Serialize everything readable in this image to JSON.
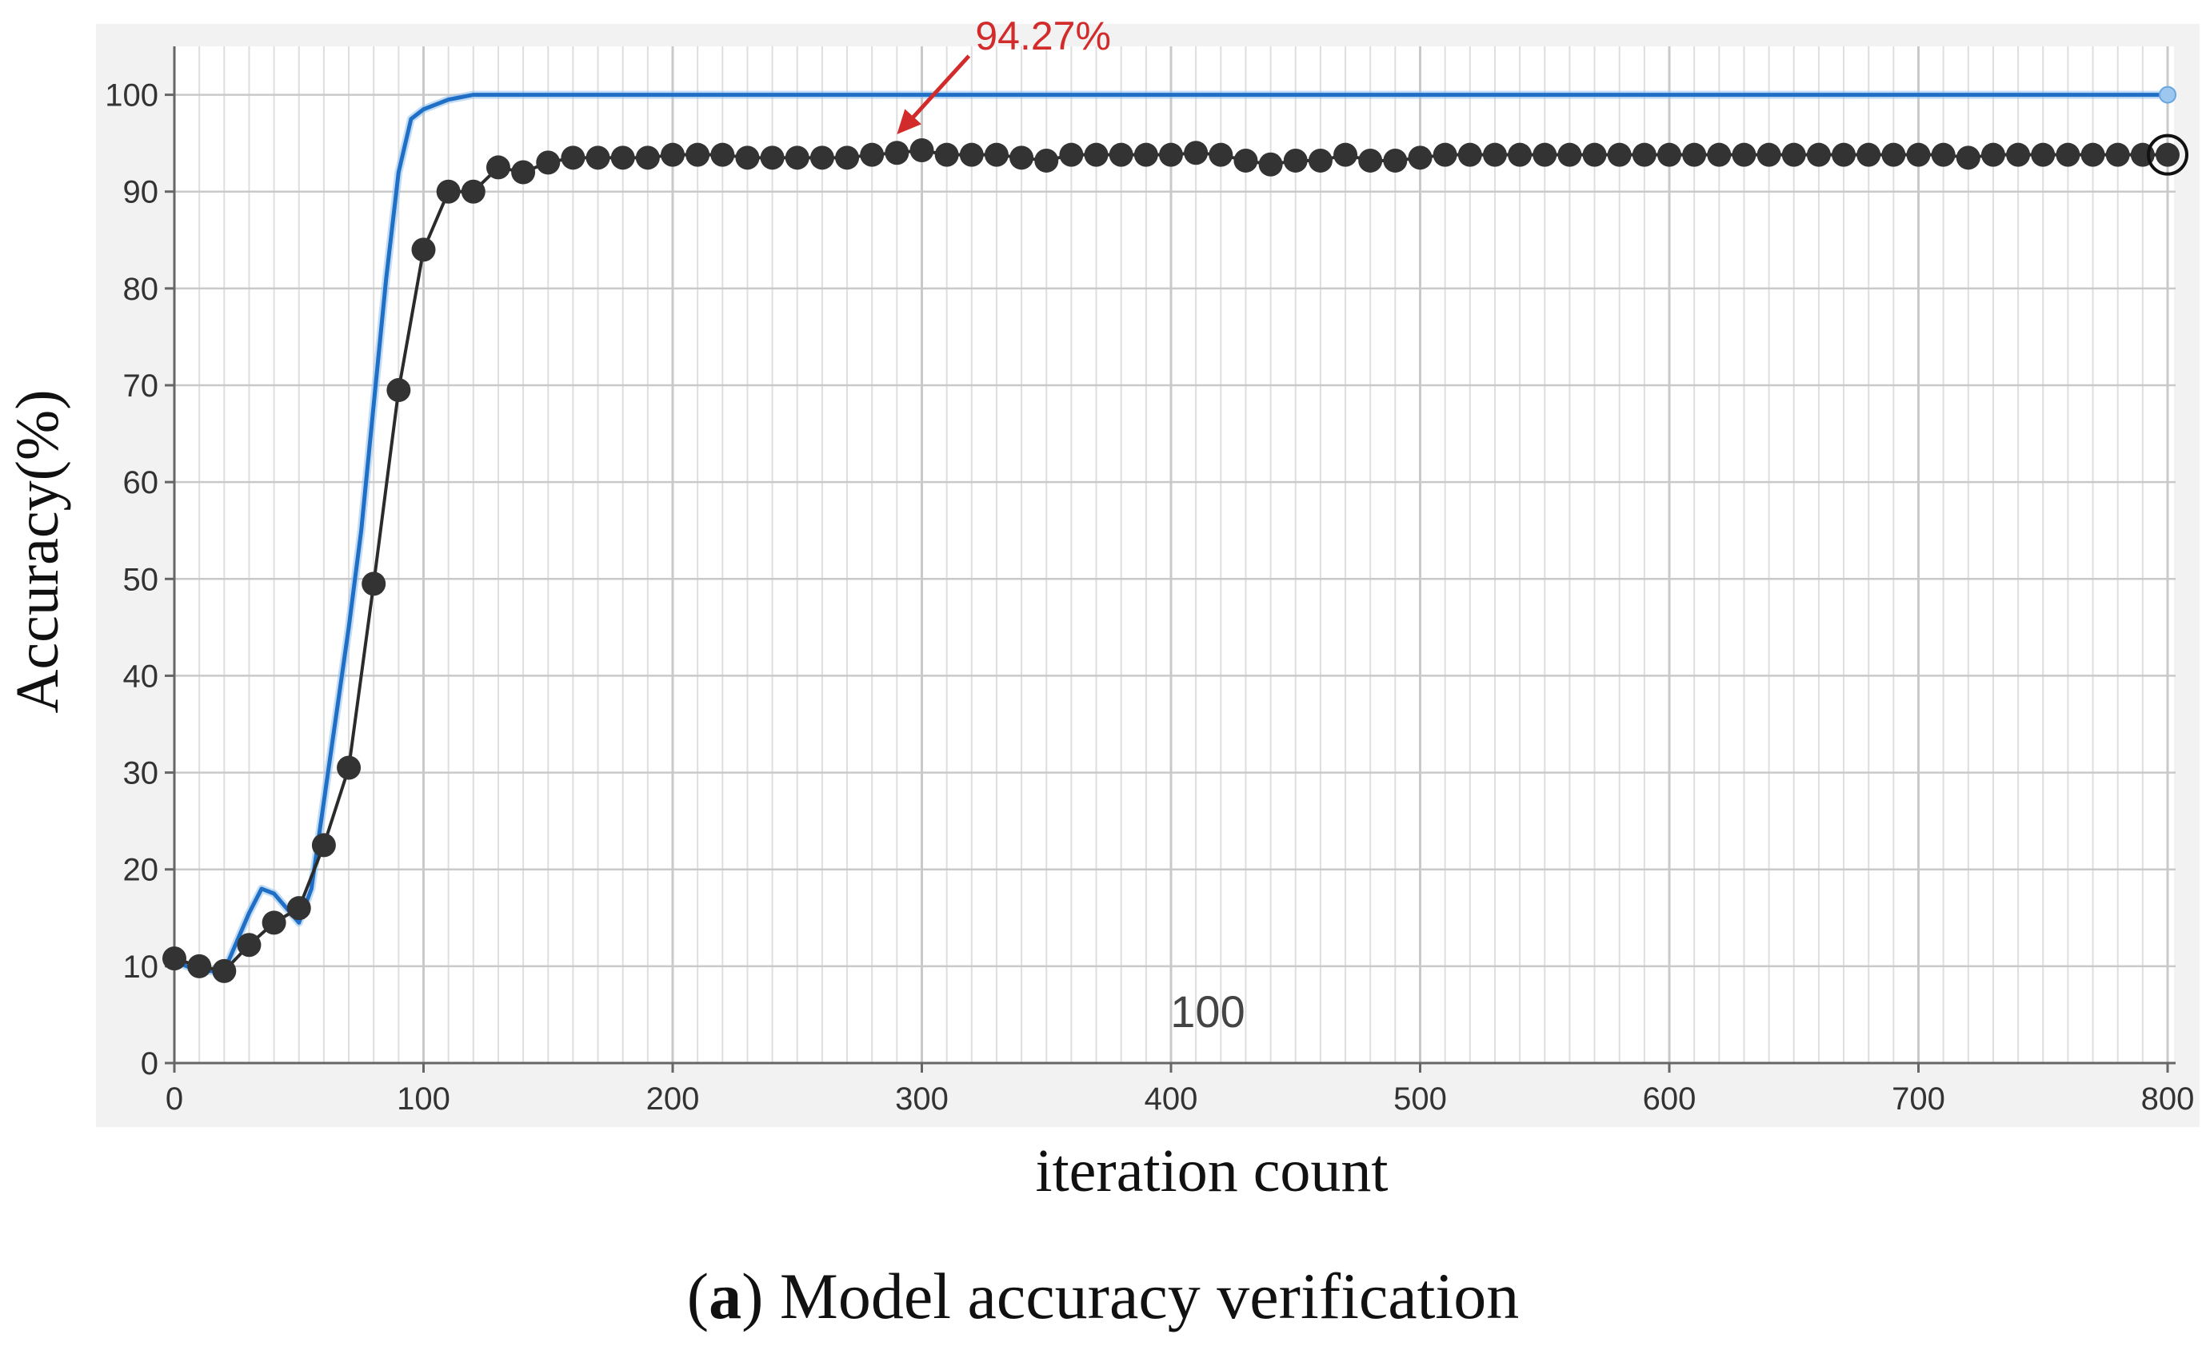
{
  "chart_data": {
    "type": "line",
    "xlabel": "iteration count",
    "ylabel": "Accuracy(%)",
    "xlim": [
      0,
      800
    ],
    "ylim": [
      0,
      105
    ],
    "x_ticks": [
      0,
      100,
      200,
      300,
      400,
      500,
      600,
      700,
      800
    ],
    "y_ticks": [
      0,
      10,
      20,
      30,
      40,
      50,
      60,
      70,
      80,
      90,
      100
    ],
    "grid": true,
    "inplot_label": "100",
    "annotation": {
      "text": "94.27%",
      "x": 290,
      "y": 94.27
    },
    "series": [
      {
        "color": "#1f6fc6",
        "style": "solid",
        "x": [
          0,
          10,
          20,
          30,
          35,
          40,
          45,
          50,
          55,
          60,
          65,
          70,
          75,
          80,
          85,
          90,
          95,
          100,
          110,
          120,
          130,
          800
        ],
        "y": [
          10.5,
          9.5,
          9.5,
          15.5,
          18,
          17.5,
          16,
          14.5,
          18,
          27,
          36,
          45,
          55,
          68,
          81,
          92,
          97.5,
          98.5,
          99.5,
          100,
          100,
          100
        ]
      },
      {
        "color": "#2b2b2b",
        "style": "markers",
        "x": [
          0,
          10,
          20,
          30,
          40,
          50,
          60,
          70,
          80,
          90,
          100,
          110,
          120,
          130,
          140,
          150,
          160,
          170,
          180,
          190,
          200,
          210,
          220,
          230,
          240,
          250,
          260,
          270,
          280,
          290,
          300,
          310,
          320,
          330,
          340,
          350,
          360,
          370,
          380,
          390,
          400,
          410,
          420,
          430,
          440,
          450,
          460,
          470,
          480,
          490,
          500,
          510,
          520,
          530,
          540,
          550,
          560,
          570,
          580,
          590,
          600,
          610,
          620,
          630,
          640,
          650,
          660,
          670,
          680,
          690,
          700,
          710,
          720,
          730,
          740,
          750,
          760,
          770,
          780,
          790,
          800
        ],
        "y": [
          10.8,
          10,
          9.5,
          12.2,
          14.5,
          16,
          22.5,
          30.5,
          49.5,
          69.5,
          84,
          90,
          90,
          92.5,
          92,
          93,
          93.5,
          93.5,
          93.5,
          93.5,
          93.8,
          93.8,
          93.8,
          93.5,
          93.5,
          93.5,
          93.5,
          93.5,
          93.8,
          94,
          94.27,
          93.8,
          93.8,
          93.8,
          93.5,
          93.2,
          93.8,
          93.8,
          93.8,
          93.8,
          93.8,
          94,
          93.8,
          93.2,
          92.8,
          93.2,
          93.2,
          93.8,
          93.2,
          93.2,
          93.5,
          93.8,
          93.8,
          93.8,
          93.8,
          93.8,
          93.8,
          93.8,
          93.8,
          93.8,
          93.8,
          93.8,
          93.8,
          93.8,
          93.8,
          93.8,
          93.8,
          93.8,
          93.8,
          93.8,
          93.8,
          93.8,
          93.5,
          93.8,
          93.8,
          93.8,
          93.8,
          93.8,
          93.8,
          93.8,
          93.8
        ]
      }
    ]
  },
  "caption": {
    "letter_open": "(",
    "letter": "a",
    "letter_close": ")",
    "text": " Model accuracy verification"
  }
}
